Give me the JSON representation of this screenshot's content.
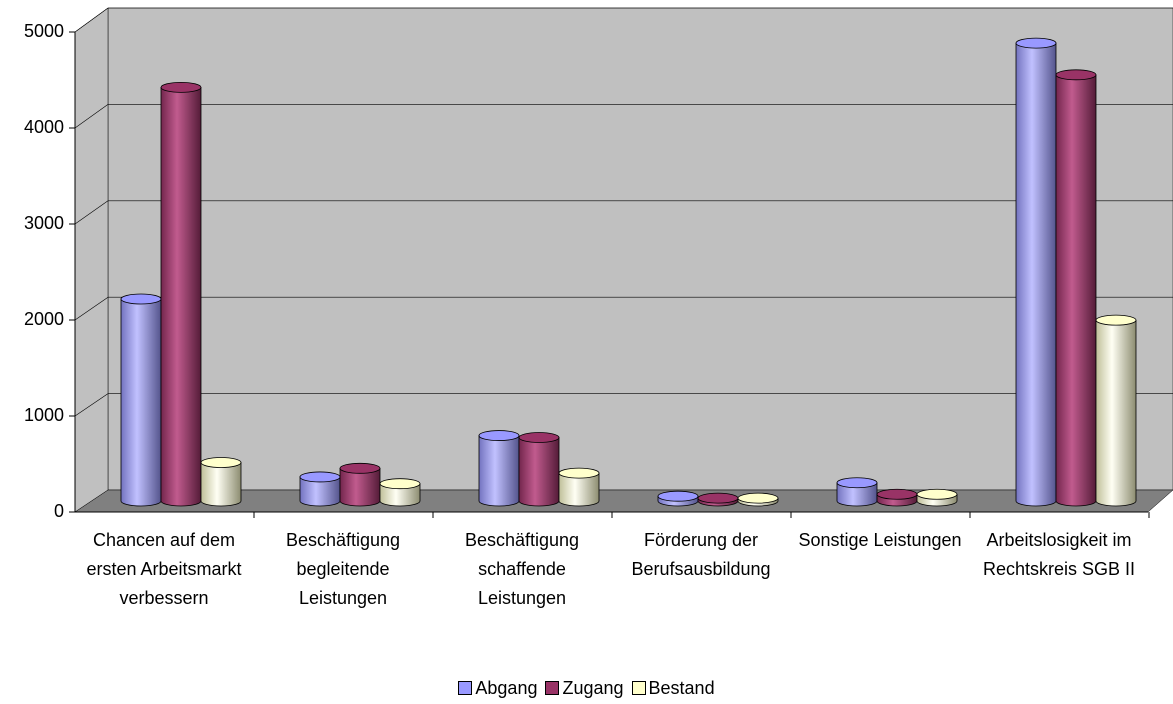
{
  "chart_data": {
    "type": "bar3d",
    "categories": [
      "Chancen auf dem ersten Arbeitsmarkt verbessern",
      "Beschäftigung begleitende Leistungen",
      "Beschäftigung schaffende Leistungen",
      "Förderung der Berufsausbildung",
      "Sonstige Leistungen",
      "Arbeitslosigkeit im Rechtskreis SGB II"
    ],
    "series": [
      {
        "name": "Abgang",
        "color": "#9999ff",
        "values": [
          2100,
          250,
          680,
          50,
          190,
          4760
        ]
      },
      {
        "name": "Zugang",
        "color": "#993366",
        "values": [
          4300,
          340,
          660,
          30,
          70,
          4430
        ]
      },
      {
        "name": "Bestand",
        "color": "#ffffcc",
        "values": [
          400,
          180,
          290,
          30,
          70,
          1880
        ]
      }
    ],
    "ylim": [
      0,
      5000
    ],
    "yticks": [
      0,
      1000,
      2000,
      3000,
      4000,
      5000
    ],
    "grid": true,
    "legend": "bottom"
  }
}
